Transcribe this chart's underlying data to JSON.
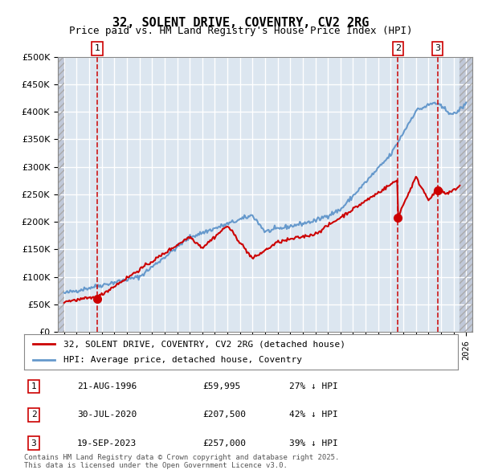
{
  "title": "32, SOLENT DRIVE, COVENTRY, CV2 2RG",
  "subtitle": "Price paid vs. HM Land Registry's House Price Index (HPI)",
  "hpi_color": "#6699cc",
  "price_color": "#cc0000",
  "dashed_color": "#cc0000",
  "background_color": "#dce6f0",
  "hatch_color": "#c0c8d8",
  "grid_color": "#ffffff",
  "ylim": [
    0,
    500000
  ],
  "yticks": [
    0,
    50000,
    100000,
    150000,
    200000,
    250000,
    300000,
    350000,
    400000,
    450000,
    500000
  ],
  "xlim_start": 1993.5,
  "xlim_end": 2026.5,
  "sale_dates": [
    1996.64,
    2020.58,
    2023.72
  ],
  "sale_prices": [
    59995,
    207500,
    257000
  ],
  "sale_labels": [
    "1",
    "2",
    "3"
  ],
  "legend_entries": [
    "32, SOLENT DRIVE, COVENTRY, CV2 2RG (detached house)",
    "HPI: Average price, detached house, Coventry"
  ],
  "table_rows": [
    {
      "label": "1",
      "date": "21-AUG-1996",
      "price": "£59,995",
      "hpi": "27% ↓ HPI"
    },
    {
      "label": "2",
      "date": "30-JUL-2020",
      "price": "£207,500",
      "hpi": "42% ↓ HPI"
    },
    {
      "label": "3",
      "date": "19-SEP-2023",
      "price": "£257,000",
      "hpi": "39% ↓ HPI"
    }
  ],
  "footer": "Contains HM Land Registry data © Crown copyright and database right 2025.\nThis data is licensed under the Open Government Licence v3.0."
}
